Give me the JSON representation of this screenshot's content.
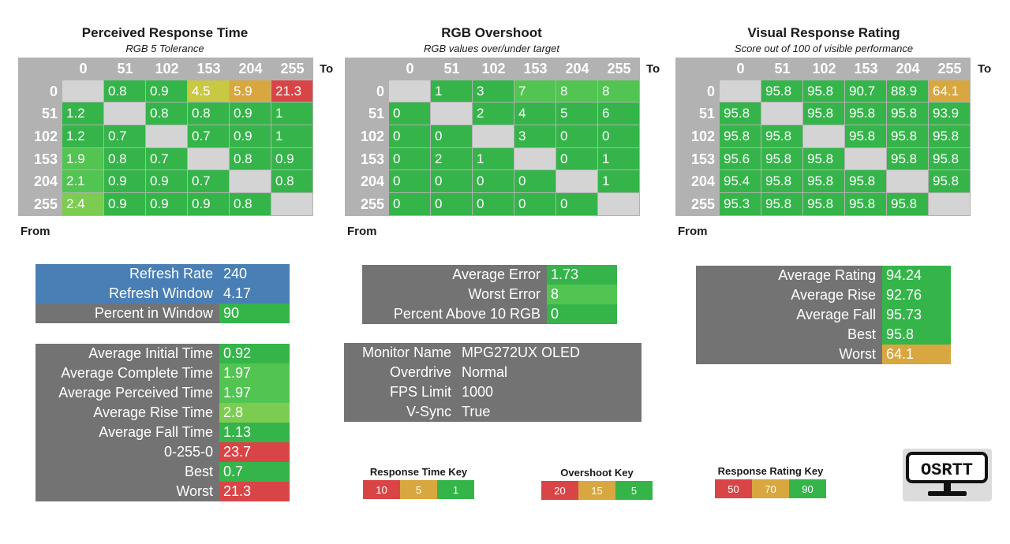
{
  "colors": {
    "green": "#35b44a",
    "green_lt": "#52c452",
    "green_yl": "#7ccc52",
    "yellow": "#c8c843",
    "gold": "#d8a740",
    "red": "#d94546",
    "gray": "#737373",
    "header_gray": "#b2b2b2",
    "blue": "#4a7fb5",
    "empty": "#d4d4d4"
  },
  "headers": [
    "0",
    "51",
    "102",
    "153",
    "204",
    "255"
  ],
  "to_label": "To",
  "from_label": "From",
  "matrices": [
    {
      "title": "Perceived Response Time",
      "subtitle": "RGB 5 Tolerance",
      "rows": [
        [
          {
            "v": "",
            "c": "empty"
          },
          {
            "v": "0.8",
            "c": "green"
          },
          {
            "v": "0.9",
            "c": "green"
          },
          {
            "v": "4.5",
            "c": "yellow"
          },
          {
            "v": "5.9",
            "c": "gold"
          },
          {
            "v": "21.3",
            "c": "red"
          }
        ],
        [
          {
            "v": "1.2",
            "c": "green"
          },
          {
            "v": "",
            "c": "empty"
          },
          {
            "v": "0.8",
            "c": "green"
          },
          {
            "v": "0.8",
            "c": "green"
          },
          {
            "v": "0.9",
            "c": "green"
          },
          {
            "v": "1",
            "c": "green"
          }
        ],
        [
          {
            "v": "1.2",
            "c": "green"
          },
          {
            "v": "0.7",
            "c": "green"
          },
          {
            "v": "",
            "c": "empty"
          },
          {
            "v": "0.7",
            "c": "green"
          },
          {
            "v": "0.9",
            "c": "green"
          },
          {
            "v": "1",
            "c": "green"
          }
        ],
        [
          {
            "v": "1.9",
            "c": "green_lt"
          },
          {
            "v": "0.8",
            "c": "green"
          },
          {
            "v": "0.7",
            "c": "green"
          },
          {
            "v": "",
            "c": "empty"
          },
          {
            "v": "0.8",
            "c": "green"
          },
          {
            "v": "0.9",
            "c": "green"
          }
        ],
        [
          {
            "v": "2.1",
            "c": "green_lt"
          },
          {
            "v": "0.9",
            "c": "green"
          },
          {
            "v": "0.9",
            "c": "green"
          },
          {
            "v": "0.7",
            "c": "green"
          },
          {
            "v": "",
            "c": "empty"
          },
          {
            "v": "0.8",
            "c": "green"
          }
        ],
        [
          {
            "v": "2.4",
            "c": "green_yl"
          },
          {
            "v": "0.9",
            "c": "green"
          },
          {
            "v": "0.9",
            "c": "green"
          },
          {
            "v": "0.9",
            "c": "green"
          },
          {
            "v": "0.8",
            "c": "green"
          },
          {
            "v": "",
            "c": "empty"
          }
        ]
      ]
    },
    {
      "title": "RGB Overshoot",
      "subtitle": "RGB values over/under target",
      "rows": [
        [
          {
            "v": "",
            "c": "empty"
          },
          {
            "v": "1",
            "c": "green"
          },
          {
            "v": "3",
            "c": "green"
          },
          {
            "v": "7",
            "c": "green_lt"
          },
          {
            "v": "8",
            "c": "green_lt"
          },
          {
            "v": "8",
            "c": "green_lt"
          }
        ],
        [
          {
            "v": "0",
            "c": "green"
          },
          {
            "v": "",
            "c": "empty"
          },
          {
            "v": "2",
            "c": "green"
          },
          {
            "v": "4",
            "c": "green"
          },
          {
            "v": "5",
            "c": "green"
          },
          {
            "v": "6",
            "c": "green"
          }
        ],
        [
          {
            "v": "0",
            "c": "green"
          },
          {
            "v": "0",
            "c": "green"
          },
          {
            "v": "",
            "c": "empty"
          },
          {
            "v": "3",
            "c": "green"
          },
          {
            "v": "0",
            "c": "green"
          },
          {
            "v": "0",
            "c": "green"
          }
        ],
        [
          {
            "v": "0",
            "c": "green"
          },
          {
            "v": "2",
            "c": "green"
          },
          {
            "v": "1",
            "c": "green"
          },
          {
            "v": "",
            "c": "empty"
          },
          {
            "v": "0",
            "c": "green"
          },
          {
            "v": "1",
            "c": "green"
          }
        ],
        [
          {
            "v": "0",
            "c": "green"
          },
          {
            "v": "0",
            "c": "green"
          },
          {
            "v": "0",
            "c": "green"
          },
          {
            "v": "0",
            "c": "green"
          },
          {
            "v": "",
            "c": "empty"
          },
          {
            "v": "1",
            "c": "green"
          }
        ],
        [
          {
            "v": "0",
            "c": "green"
          },
          {
            "v": "0",
            "c": "green"
          },
          {
            "v": "0",
            "c": "green"
          },
          {
            "v": "0",
            "c": "green"
          },
          {
            "v": "0",
            "c": "green"
          },
          {
            "v": "",
            "c": "empty"
          }
        ]
      ]
    },
    {
      "title": "Visual Response Rating",
      "subtitle": "Score out of 100 of visible performance",
      "rows": [
        [
          {
            "v": "",
            "c": "empty"
          },
          {
            "v": "95.8",
            "c": "green"
          },
          {
            "v": "95.8",
            "c": "green"
          },
          {
            "v": "90.7",
            "c": "green"
          },
          {
            "v": "88.9",
            "c": "green"
          },
          {
            "v": "64.1",
            "c": "gold"
          }
        ],
        [
          {
            "v": "95.8",
            "c": "green"
          },
          {
            "v": "",
            "c": "empty"
          },
          {
            "v": "95.8",
            "c": "green"
          },
          {
            "v": "95.8",
            "c": "green"
          },
          {
            "v": "95.8",
            "c": "green"
          },
          {
            "v": "93.9",
            "c": "green"
          }
        ],
        [
          {
            "v": "95.8",
            "c": "green"
          },
          {
            "v": "95.8",
            "c": "green"
          },
          {
            "v": "",
            "c": "empty"
          },
          {
            "v": "95.8",
            "c": "green"
          },
          {
            "v": "95.8",
            "c": "green"
          },
          {
            "v": "95.8",
            "c": "green"
          }
        ],
        [
          {
            "v": "95.6",
            "c": "green"
          },
          {
            "v": "95.8",
            "c": "green"
          },
          {
            "v": "95.8",
            "c": "green"
          },
          {
            "v": "",
            "c": "empty"
          },
          {
            "v": "95.8",
            "c": "green"
          },
          {
            "v": "95.8",
            "c": "green"
          }
        ],
        [
          {
            "v": "95.4",
            "c": "green"
          },
          {
            "v": "95.8",
            "c": "green"
          },
          {
            "v": "95.8",
            "c": "green"
          },
          {
            "v": "95.8",
            "c": "green"
          },
          {
            "v": "",
            "c": "empty"
          },
          {
            "v": "95.8",
            "c": "green"
          }
        ],
        [
          {
            "v": "95.3",
            "c": "green"
          },
          {
            "v": "95.8",
            "c": "green"
          },
          {
            "v": "95.8",
            "c": "green"
          },
          {
            "v": "95.8",
            "c": "green"
          },
          {
            "v": "95.8",
            "c": "green"
          },
          {
            "v": "",
            "c": "empty"
          }
        ]
      ]
    }
  ],
  "stat_boxes": [
    {
      "name": "refresh-stats",
      "rows": [
        {
          "label": "Refresh Rate",
          "value": "240",
          "lc": "blue",
          "vc": "blue"
        },
        {
          "label": "Refresh Window",
          "value": "4.17",
          "lc": "blue",
          "vc": "blue"
        },
        {
          "label": "Percent in Window",
          "value": "90",
          "lc": "gray",
          "vc": "green"
        }
      ]
    },
    {
      "name": "time-stats",
      "rows": [
        {
          "label": "Average Initial Time",
          "value": "0.92",
          "lc": "gray",
          "vc": "green"
        },
        {
          "label": "Average Complete Time",
          "value": "1.97",
          "lc": "gray",
          "vc": "green_lt"
        },
        {
          "label": "Average Perceived Time",
          "value": "1.97",
          "lc": "gray",
          "vc": "green_lt"
        },
        {
          "label": "Average Rise Time",
          "value": "2.8",
          "lc": "gray",
          "vc": "green_yl"
        },
        {
          "label": "Average Fall Time",
          "value": "1.13",
          "lc": "gray",
          "vc": "green"
        },
        {
          "label": "0-255-0",
          "value": "23.7",
          "lc": "gray",
          "vc": "red"
        },
        {
          "label": "Best",
          "value": "0.7",
          "lc": "gray",
          "vc": "green"
        },
        {
          "label": "Worst",
          "value": "21.3",
          "lc": "gray",
          "vc": "red"
        }
      ]
    },
    {
      "name": "error-stats",
      "rows": [
        {
          "label": "Average Error",
          "value": "1.73",
          "lc": "gray",
          "vc": "green"
        },
        {
          "label": "Worst Error",
          "value": "8",
          "lc": "gray",
          "vc": "green_lt"
        },
        {
          "label": "Percent Above 10 RGB",
          "value": "0",
          "lc": "gray",
          "vc": "green"
        }
      ]
    },
    {
      "name": "monitor-info",
      "rows": [
        {
          "label": "Monitor Name",
          "value": "MPG272UX OLED",
          "lc": "gray",
          "vc": "gray"
        },
        {
          "label": "Overdrive",
          "value": "Normal",
          "lc": "gray",
          "vc": "gray"
        },
        {
          "label": "FPS Limit",
          "value": "1000",
          "lc": "gray",
          "vc": "gray"
        },
        {
          "label": "V-Sync",
          "value": "True",
          "lc": "gray",
          "vc": "gray"
        }
      ]
    },
    {
      "name": "rating-stats",
      "rows": [
        {
          "label": "Average Rating",
          "value": "94.24",
          "lc": "gray",
          "vc": "green"
        },
        {
          "label": "Average Rise",
          "value": "92.76",
          "lc": "gray",
          "vc": "green"
        },
        {
          "label": "Average Fall",
          "value": "95.73",
          "lc": "gray",
          "vc": "green"
        },
        {
          "label": "Best",
          "value": "95.8",
          "lc": "gray",
          "vc": "green"
        },
        {
          "label": "Worst",
          "value": "64.1",
          "lc": "gray",
          "vc": "gold"
        }
      ]
    }
  ],
  "keys": [
    {
      "name": "response-time-key",
      "title": "Response Time Key",
      "cells": [
        {
          "v": "10",
          "c": "red"
        },
        {
          "v": "5",
          "c": "gold"
        },
        {
          "v": "1",
          "c": "green"
        }
      ]
    },
    {
      "name": "overshoot-key",
      "title": "Overshoot Key",
      "cells": [
        {
          "v": "20",
          "c": "red"
        },
        {
          "v": "15",
          "c": "gold"
        },
        {
          "v": "5",
          "c": "green"
        }
      ]
    },
    {
      "name": "response-rating-key",
      "title": "Response Rating Key",
      "cells": [
        {
          "v": "50",
          "c": "red"
        },
        {
          "v": "70",
          "c": "gold"
        },
        {
          "v": "90",
          "c": "green"
        }
      ]
    }
  ],
  "logo": {
    "text": "OSRTT",
    "icon": "monitor-icon"
  }
}
